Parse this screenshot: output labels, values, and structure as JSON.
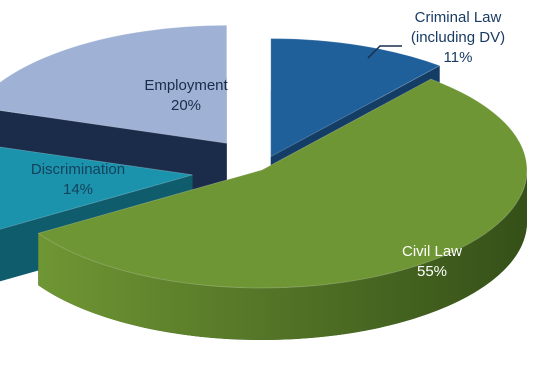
{
  "chart_data": {
    "type": "pie",
    "style": "3d-exploded",
    "title": "",
    "slices": [
      {
        "label_lines": [
          "Criminal Law",
          "(including DV)"
        ],
        "value": 11,
        "value_label": "11%",
        "color": "#1f5f9a",
        "dark": "#143d66",
        "text_color": "#1a3b63"
      },
      {
        "label_lines": [
          "Civil Law"
        ],
        "value": 55,
        "value_label": "55%",
        "color": "#6f9634",
        "dark": "#355018",
        "text_color": "#ffffff"
      },
      {
        "label_lines": [
          "Discrimination"
        ],
        "value": 14,
        "value_label": "14%",
        "color": "#1c93ad",
        "dark": "#0f5c6c",
        "text_color": "#14425a"
      },
      {
        "label_lines": [
          "Employment"
        ],
        "value": 20,
        "value_label": "20%",
        "color": "#9fb2d5",
        "dark": "#1b2c4a",
        "text_color": "#1b2c4a"
      }
    ]
  }
}
